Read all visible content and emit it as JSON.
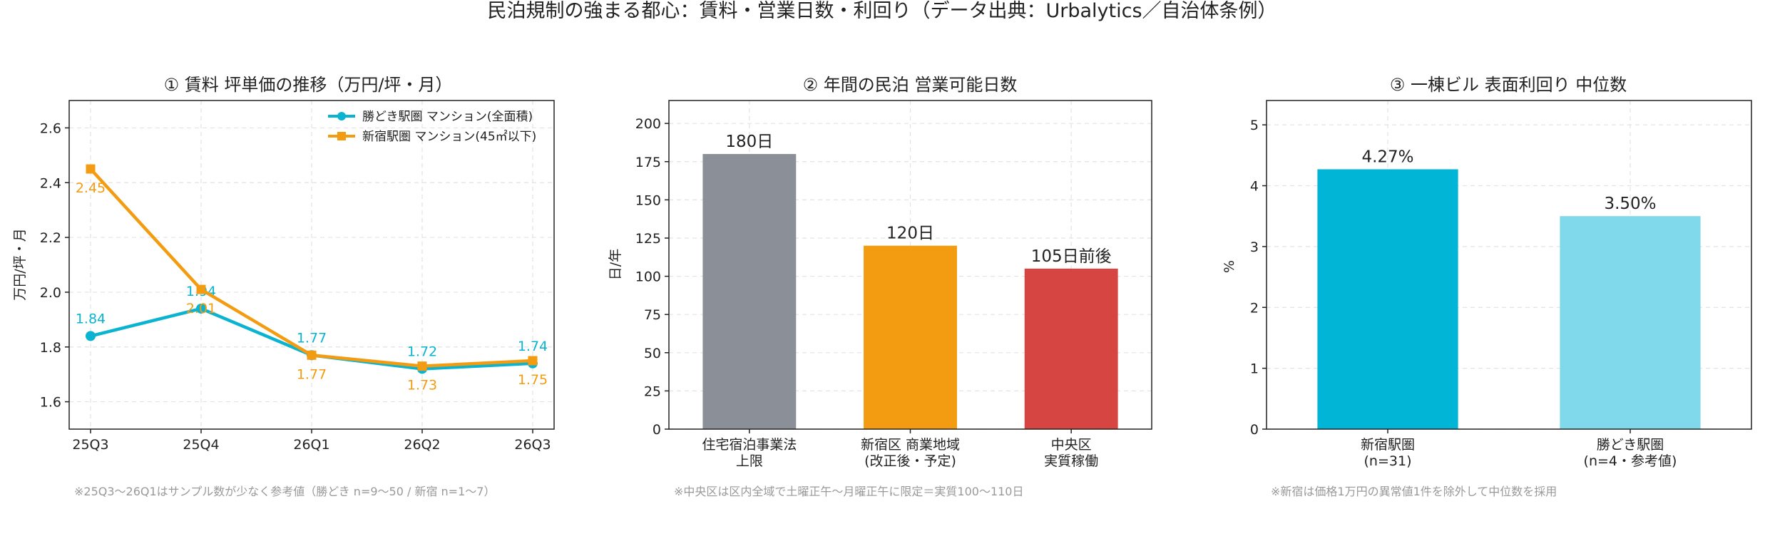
{
  "suptitle": "民泊規制の強まる都心：賃料・営業日数・利回り（データ出典：Urbalytics／自治体条例）",
  "chart_data": [
    {
      "type": "line",
      "title": "① 賃料 坪単価の推移（万円/坪・月）",
      "ylabel": "万円/坪・月",
      "xlabel": "",
      "x": [
        "25Q3",
        "25Q4",
        "26Q1",
        "26Q2",
        "26Q3"
      ],
      "ylim": [
        1.5,
        2.7
      ],
      "yticks": [
        1.6,
        1.8,
        2.0,
        2.2,
        2.4,
        2.6
      ],
      "grid": true,
      "legend_position": "top-right",
      "series": [
        {
          "name": "勝どき駅圏 マンション(全面積)",
          "color": "#0ab4d0",
          "marker": "circle",
          "values": [
            1.84,
            1.94,
            1.77,
            1.72,
            1.74
          ],
          "labels": [
            "1.84",
            "1.94",
            "1.77",
            "1.72",
            "1.74"
          ]
        },
        {
          "name": "新宿駅圏 マンション(45㎡以下)",
          "color": "#f39c12",
          "marker": "square",
          "values": [
            2.45,
            2.01,
            1.77,
            1.73,
            1.75
          ],
          "labels": [
            "2.45",
            "2.01",
            "1.77",
            "1.73",
            "1.75"
          ]
        }
      ],
      "note": "※25Q3〜26Q1はサンプル数が少なく参考値（勝どき n=9〜50 / 新宿 n=1〜7）"
    },
    {
      "type": "bar",
      "title": "② 年間の民泊 営業可能日数",
      "ylabel": "日/年",
      "xlabel": "",
      "categories": [
        [
          "住宅宿泊事業法",
          "上限"
        ],
        [
          "新宿区 商業地域",
          "(改正後・予定)"
        ],
        [
          "中央区",
          "実質稼働"
        ]
      ],
      "values": [
        180,
        120,
        105
      ],
      "labels": [
        "180日",
        "120日",
        "105日前後"
      ],
      "colors": [
        "#8b9098",
        "#f39c12",
        "#d64541"
      ],
      "ylim": [
        0,
        215
      ],
      "yticks": [
        0,
        25,
        50,
        75,
        100,
        125,
        150,
        175,
        200
      ],
      "grid": true,
      "note": "※中央区は区内全域で土曜正午〜月曜正午に限定＝実質100〜110日"
    },
    {
      "type": "bar",
      "title": "③ 一棟ビル 表面利回り 中位数",
      "ylabel": "%",
      "xlabel": "",
      "categories": [
        [
          "新宿駅圏",
          "(n=31)"
        ],
        [
          "勝どき駅圏",
          "(n=4・参考値)"
        ]
      ],
      "values": [
        4.27,
        3.5
      ],
      "labels": [
        "4.27%",
        "3.50%"
      ],
      "colors": [
        "#00b5d6",
        "#7fd9ea"
      ],
      "ylim": [
        0,
        5.4
      ],
      "yticks": [
        0,
        1,
        2,
        3,
        4,
        5
      ],
      "grid": true,
      "note": "※新宿は価格1万円の異常値1件を除外して中位数を採用"
    }
  ]
}
